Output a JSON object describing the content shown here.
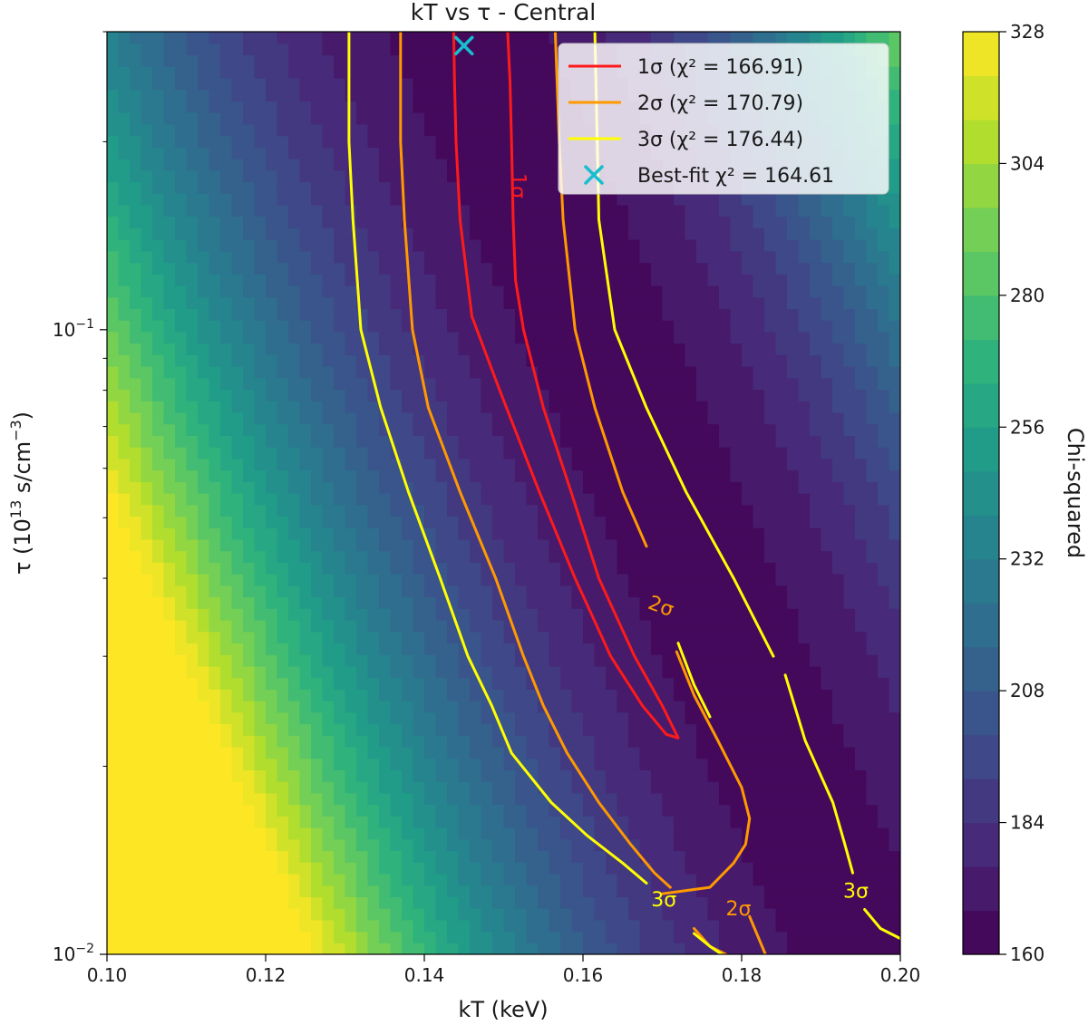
{
  "chart_data": {
    "type": "contour",
    "title": "kT vs τ - Central",
    "xlabel": "kT (keV)",
    "ylabel_parts": {
      "pre": "τ (10",
      "sup1": "13",
      "mid": " s/cm",
      "sup2": "−3",
      "post": ")"
    },
    "xlim": [
      0.1,
      0.2
    ],
    "ylim": [
      0.01,
      0.3
    ],
    "yscale": "log",
    "x_ticks": [
      "0.10",
      "0.12",
      "0.14",
      "0.16",
      "0.18",
      "0.20"
    ],
    "y_major_ticks": [
      {
        "value": 0.01,
        "base": "10",
        "exp": "−2"
      },
      {
        "value": 0.1,
        "base": "10",
        "exp": "−1"
      }
    ],
    "y_minor_ticks": [
      0.02,
      0.03,
      0.04,
      0.05,
      0.06,
      0.07,
      0.08,
      0.09,
      0.2,
      0.3
    ],
    "colorbar": {
      "label": "Chi-squared",
      "min": 160,
      "max": 328,
      "step": 8,
      "ticks": [
        "160",
        "184",
        "208",
        "232",
        "256",
        "280",
        "304",
        "328"
      ],
      "colormap": "viridis"
    },
    "contours": [
      {
        "name": "1σ (χ² = 166.91)",
        "inline_label": "1σ",
        "color": "#ff1a1a",
        "points": [
          [
            0.1505,
            0.3
          ],
          [
            0.1508,
            0.25
          ],
          [
            0.151,
            0.2
          ],
          [
            0.1512,
            0.15
          ],
          [
            0.1515,
            0.12
          ],
          [
            0.1525,
            0.1
          ],
          [
            0.155,
            0.075
          ],
          [
            0.1585,
            0.055
          ],
          [
            0.162,
            0.04
          ],
          [
            0.1665,
            0.03
          ],
          [
            0.17,
            0.025
          ],
          [
            0.172,
            0.0222
          ],
          [
            0.1705,
            0.0225
          ],
          [
            0.1675,
            0.025
          ],
          [
            0.1635,
            0.03
          ],
          [
            0.159,
            0.04
          ],
          [
            0.1545,
            0.055
          ],
          [
            0.1495,
            0.08
          ],
          [
            0.146,
            0.105
          ],
          [
            0.1445,
            0.15
          ],
          [
            0.144,
            0.2
          ],
          [
            0.1438,
            0.25
          ],
          [
            0.1437,
            0.3
          ]
        ]
      },
      {
        "name": "2σ (χ² = 170.79)",
        "inline_label": "2σ",
        "color": "#ff9900",
        "segments": [
          [
            [
              0.1565,
              0.3
            ],
            [
              0.157,
              0.2
            ],
            [
              0.1575,
              0.15
            ],
            [
              0.159,
              0.1
            ],
            [
              0.1615,
              0.075
            ],
            [
              0.165,
              0.055
            ],
            [
              0.168,
              0.045
            ]
          ],
          [
            [
              0.1718,
              0.0305
            ],
            [
              0.174,
              0.026
            ],
            [
              0.177,
              0.022
            ],
            [
              0.18,
              0.0185
            ],
            [
              0.181,
              0.0165
            ],
            [
              0.1805,
              0.015
            ],
            [
              0.179,
              0.014
            ],
            [
              0.176,
              0.0128
            ],
            [
              0.17,
              0.0125
            ]
          ],
          [
            [
              0.174,
              0.011
            ],
            [
              0.176,
              0.0103
            ],
            [
              0.178,
              0.01
            ]
          ],
          [
            [
              0.181,
              0.0115
            ],
            [
              0.183,
              0.01
            ]
          ],
          [
            [
              0.137,
              0.3
            ],
            [
              0.137,
              0.2
            ],
            [
              0.1375,
              0.15
            ],
            [
              0.1385,
              0.1
            ],
            [
              0.1405,
              0.075
            ],
            [
              0.1445,
              0.055
            ],
            [
              0.149,
              0.04
            ],
            [
              0.1525,
              0.03
            ],
            [
              0.155,
              0.025
            ],
            [
              0.158,
              0.021
            ],
            [
              0.162,
              0.0175
            ],
            [
              0.166,
              0.015
            ],
            [
              0.169,
              0.0135
            ],
            [
              0.171,
              0.0128
            ]
          ]
        ]
      },
      {
        "name": "3σ (χ² = 176.44)",
        "inline_label": "3σ",
        "color": "#ffff00",
        "segments": [
          [
            [
              0.1305,
              0.3
            ],
            [
              0.1305,
              0.2
            ],
            [
              0.131,
              0.15
            ],
            [
              0.132,
              0.1
            ],
            [
              0.1345,
              0.075
            ],
            [
              0.138,
              0.055
            ],
            [
              0.142,
              0.04
            ],
            [
              0.1455,
              0.03
            ],
            [
              0.1485,
              0.025
            ],
            [
              0.151,
              0.021
            ],
            [
              0.156,
              0.0175
            ],
            [
              0.1605,
              0.0155
            ],
            [
              0.165,
              0.014
            ],
            [
              0.168,
              0.013
            ]
          ],
          [
            [
              0.174,
              0.0108
            ],
            [
              0.176,
              0.0103
            ],
            [
              0.1775,
              0.01
            ]
          ],
          [
            [
              0.1615,
              0.3
            ],
            [
              0.1618,
              0.2
            ],
            [
              0.162,
              0.15
            ],
            [
              0.164,
              0.1
            ],
            [
              0.168,
              0.075
            ],
            [
              0.173,
              0.055
            ],
            [
              0.179,
              0.04
            ],
            [
              0.184,
              0.03
            ]
          ],
          [
            [
              0.1855,
              0.028
            ],
            [
              0.188,
              0.022
            ],
            [
              0.1915,
              0.0175
            ],
            [
              0.193,
              0.015
            ],
            [
              0.194,
              0.0135
            ]
          ],
          [
            [
              0.1955,
              0.0118
            ],
            [
              0.1975,
              0.011
            ],
            [
              0.2,
              0.0106
            ]
          ],
          [
            [
              0.172,
              0.0315
            ],
            [
              0.174,
              0.027
            ],
            [
              0.176,
              0.024
            ]
          ]
        ]
      }
    ],
    "inline_labels": [
      {
        "text": "1σ",
        "color": "#ff1a1a",
        "x": 0.1518,
        "y": 0.17,
        "rotate": 90
      },
      {
        "text": "2σ",
        "color": "#ff9900",
        "x": 0.1698,
        "y": 0.036,
        "rotate": 20
      },
      {
        "text": "2σ",
        "color": "#ff9900",
        "x": 0.1796,
        "y": 0.0118,
        "rotate": 0
      },
      {
        "text": "3σ",
        "color": "#ffff00",
        "x": 0.1702,
        "y": 0.0122,
        "rotate": 0
      },
      {
        "text": "3σ",
        "color": "#ffff00",
        "x": 0.1944,
        "y": 0.0126,
        "rotate": 0
      }
    ],
    "best_fit": {
      "name": "Best-fit χ² = 164.61",
      "x": 0.145,
      "y": 0.285,
      "color": "#17becf",
      "marker": "x"
    },
    "legend_location": "upper-right"
  }
}
